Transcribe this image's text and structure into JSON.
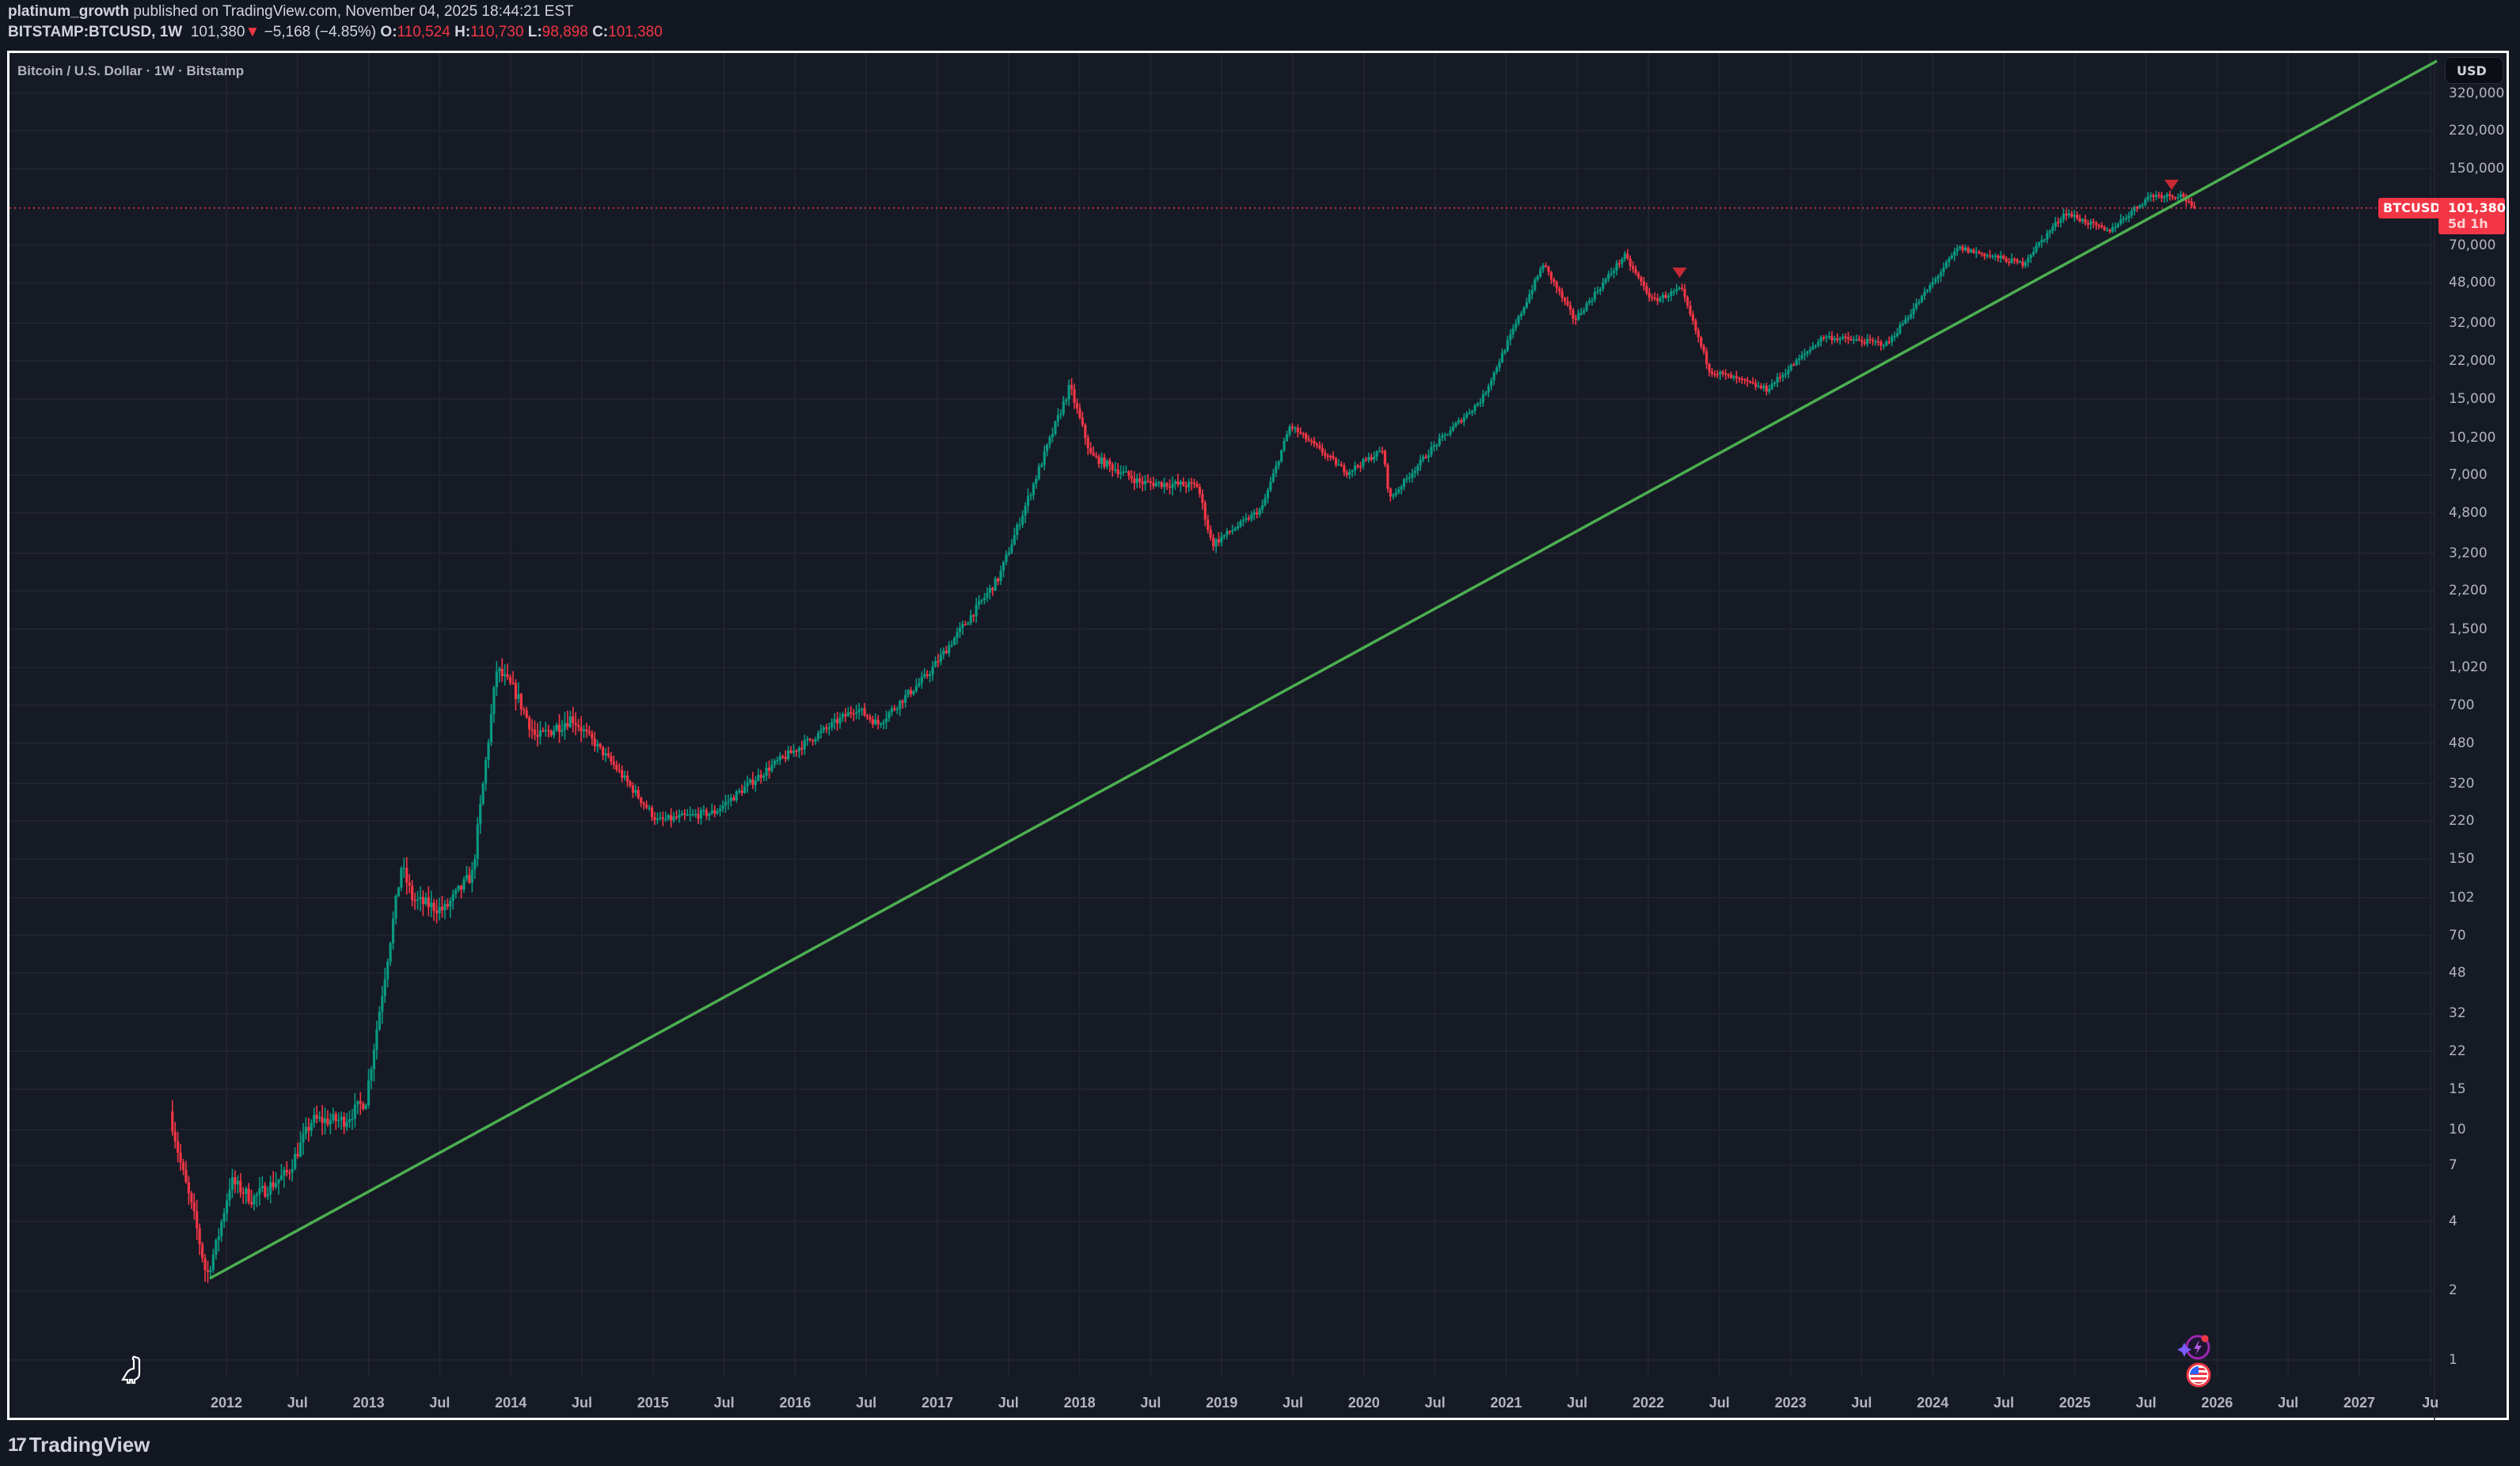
{
  "header": {
    "author": "platinum_growth",
    "published_text": " published on TradingView.com, November 04, 2025 18:44:21 EST",
    "symbol": "BITSTAMP:BTCUSD, 1W",
    "last": "101,380",
    "change_arrow": "▼",
    "change": "−5,168 (−4.85%)",
    "o_label": "O:",
    "o": "110,524",
    "h_label": "H:",
    "h": "110,730",
    "l_label": "L:",
    "l": "98,898",
    "c_label": "C:",
    "c": "101,380"
  },
  "legend": {
    "title": "Bitcoin / U.S. Dollar · 1W · Bitstamp"
  },
  "currency_button": "USD",
  "price_tag": {
    "symbol": "BTCUSD",
    "price": "101,380",
    "countdown": "5d 1h"
  },
  "footer": {
    "logo_mark": "17",
    "brand": "TradingView"
  },
  "colors": {
    "up": "#089981",
    "down": "#f23645",
    "trendline": "#4caf50",
    "background": "#161a25",
    "grid": "#232632",
    "text": "#b2b5be"
  },
  "chart_data": {
    "type": "candlestick",
    "title": "Bitcoin / U.S. Dollar · 1W · Bitstamp",
    "scale": "log",
    "xlabel": "",
    "ylabel": "USD",
    "y_ticks": [
      "320,000",
      "220,000",
      "150,000",
      "70,000",
      "48,000",
      "32,000",
      "22,000",
      "15,000",
      "10,200",
      "7,000",
      "4,800",
      "3,200",
      "2,200",
      "1,500",
      "1,020",
      "700",
      "480",
      "320",
      "220",
      "150",
      "102",
      "70",
      "48",
      "32",
      "22",
      "15",
      "10",
      "7",
      "4",
      "2",
      "1"
    ],
    "x_ticks": [
      "2012",
      "Jul",
      "2013",
      "Jul",
      "2014",
      "Jul",
      "2015",
      "Jul",
      "2016",
      "Jul",
      "2017",
      "Jul",
      "2018",
      "Jul",
      "2019",
      "Jul",
      "2020",
      "Jul",
      "2021",
      "Jul",
      "2022",
      "Jul",
      "2023",
      "Jul",
      "2024",
      "Jul",
      "2025",
      "Jul",
      "2026",
      "Jul",
      "2027",
      "Ju"
    ],
    "ylim": [
      0.85,
      420000
    ],
    "xlim": [
      "2011-08",
      "2027-08"
    ],
    "last_price": 101380,
    "approx_path": [
      {
        "t": 2011.62,
        "p": 12
      },
      {
        "t": 2011.7,
        "p": 7
      },
      {
        "t": 2011.8,
        "p": 4
      },
      {
        "t": 2011.88,
        "p": 2.3
      },
      {
        "t": 2011.95,
        "p": 3.2
      },
      {
        "t": 2012.05,
        "p": 6
      },
      {
        "t": 2012.2,
        "p": 5
      },
      {
        "t": 2012.45,
        "p": 6.5
      },
      {
        "t": 2012.62,
        "p": 11
      },
      {
        "t": 2012.85,
        "p": 11
      },
      {
        "t": 2013.0,
        "p": 13.5
      },
      {
        "t": 2013.25,
        "p": 140
      },
      {
        "t": 2013.33,
        "p": 100
      },
      {
        "t": 2013.55,
        "p": 90
      },
      {
        "t": 2013.75,
        "p": 130
      },
      {
        "t": 2013.92,
        "p": 1000
      },
      {
        "t": 2014.05,
        "p": 800
      },
      {
        "t": 2014.2,
        "p": 500
      },
      {
        "t": 2014.45,
        "p": 620
      },
      {
        "t": 2014.75,
        "p": 380
      },
      {
        "t": 2015.05,
        "p": 220
      },
      {
        "t": 2015.45,
        "p": 240
      },
      {
        "t": 2015.85,
        "p": 380
      },
      {
        "t": 2016.45,
        "p": 680
      },
      {
        "t": 2016.6,
        "p": 580
      },
      {
        "t": 2016.95,
        "p": 950
      },
      {
        "t": 2017.45,
        "p": 2500
      },
      {
        "t": 2017.95,
        "p": 17000
      },
      {
        "t": 2018.1,
        "p": 8500
      },
      {
        "t": 2018.45,
        "p": 6500
      },
      {
        "t": 2018.85,
        "p": 6300
      },
      {
        "t": 2018.95,
        "p": 3500
      },
      {
        "t": 2019.3,
        "p": 5000
      },
      {
        "t": 2019.5,
        "p": 11500
      },
      {
        "t": 2019.9,
        "p": 7200
      },
      {
        "t": 2020.15,
        "p": 9000
      },
      {
        "t": 2020.2,
        "p": 5500
      },
      {
        "t": 2020.5,
        "p": 9200
      },
      {
        "t": 2020.85,
        "p": 15000
      },
      {
        "t": 2021.28,
        "p": 58000
      },
      {
        "t": 2021.5,
        "p": 33000
      },
      {
        "t": 2021.85,
        "p": 63000
      },
      {
        "t": 2022.05,
        "p": 40000
      },
      {
        "t": 2022.25,
        "p": 45000
      },
      {
        "t": 2022.45,
        "p": 20000
      },
      {
        "t": 2022.85,
        "p": 16500
      },
      {
        "t": 2023.25,
        "p": 28000
      },
      {
        "t": 2023.7,
        "p": 26000
      },
      {
        "t": 2024.2,
        "p": 68000
      },
      {
        "t": 2024.65,
        "p": 58000
      },
      {
        "t": 2024.95,
        "p": 97000
      },
      {
        "t": 2025.25,
        "p": 80000
      },
      {
        "t": 2025.55,
        "p": 115000
      },
      {
        "t": 2025.78,
        "p": 115000
      },
      {
        "t": 2025.84,
        "p": 101380
      }
    ],
    "trendline": {
      "start": {
        "t": 2011.88,
        "p": 2.3
      },
      "end": {
        "t": 2027.65,
        "p": 420000
      },
      "color": "#4caf50"
    },
    "annotations": [
      "red down-triangle marker near 2022 local high",
      "red down-triangle marker near 2025 high"
    ]
  }
}
